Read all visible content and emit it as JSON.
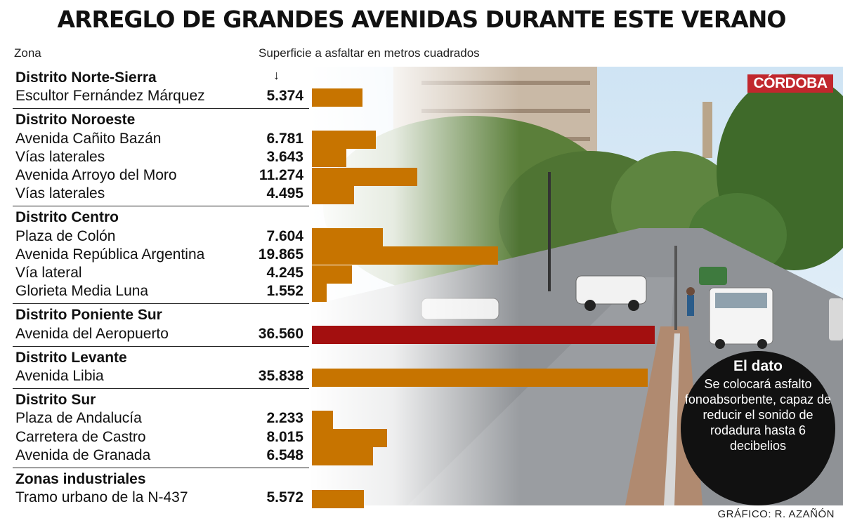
{
  "title": "ARREGLO DE GRANDES AVENIDAS DURANTE ESTE VERANO",
  "brand": "CÓRDOBA",
  "credit": "GRÁFICO: R. AZAÑÓN",
  "dato": {
    "heading": "El dato",
    "text": "Se colocará asfalto fonoabsorbente, capaz de reducir el sonido de rodadura hasta 6 decibelios"
  },
  "colors": {
    "bar": "#c77400",
    "highlight": "#a30f0f"
  },
  "chart_data": {
    "type": "bar",
    "orientation": "horizontal",
    "xlabel": "Zona",
    "ylabel": "Superficie a asfaltar en metros cuadrados",
    "xlim": [
      0,
      36560
    ],
    "groups": [
      {
        "name": "Distrito Norte-Sierra",
        "rows": [
          {
            "label": "Escultor Fernández Márquez",
            "value": 5374,
            "display": "5.374"
          }
        ]
      },
      {
        "name": "Distrito Noroeste",
        "rows": [
          {
            "label": "Avenida Cañito Bazán",
            "value": 6781,
            "display": "6.781"
          },
          {
            "label": "Vías laterales",
            "value": 3643,
            "display": "3.643"
          },
          {
            "label": "Avenida Arroyo del Moro",
            "value": 11274,
            "display": "11.274"
          },
          {
            "label": "Vías laterales",
            "value": 4495,
            "display": "4.495"
          }
        ]
      },
      {
        "name": "Distrito Centro",
        "rows": [
          {
            "label": "Plaza de Colón",
            "value": 7604,
            "display": "7.604"
          },
          {
            "label": "Avenida República Argentina",
            "value": 19865,
            "display": "19.865"
          },
          {
            "label": "Vía lateral",
            "value": 4245,
            "display": "4.245"
          },
          {
            "label": "Glorieta Media Luna",
            "value": 1552,
            "display": "1.552"
          }
        ]
      },
      {
        "name": "Distrito Poniente Sur",
        "rows": [
          {
            "label": "Avenida del Aeropuerto",
            "value": 36560,
            "display": "36.560",
            "highlight": true
          }
        ]
      },
      {
        "name": "Distrito Levante",
        "rows": [
          {
            "label": "Avenida Libia",
            "value": 35838,
            "display": "35.838"
          }
        ]
      },
      {
        "name": "Distrito Sur",
        "rows": [
          {
            "label": "Plaza de Andalucía",
            "value": 2233,
            "display": "2.233"
          },
          {
            "label": "Carretera de Castro",
            "value": 8015,
            "display": "8.015"
          },
          {
            "label": "Avenida de Granada",
            "value": 6548,
            "display": "6.548"
          }
        ]
      },
      {
        "name": "Zonas industriales",
        "rows": [
          {
            "label": "Tramo urbano de la N-437",
            "value": 5572,
            "display": "5.572"
          }
        ]
      }
    ]
  }
}
